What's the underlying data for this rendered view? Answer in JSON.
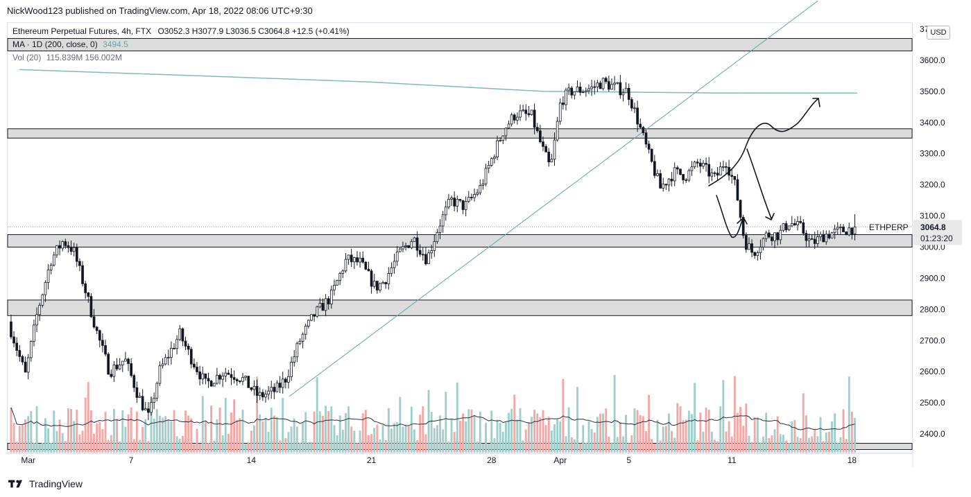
{
  "header": {
    "published": "NickWood123 published on TradingView.com, Apr 18, 2022 08:06 UTC+9:30"
  },
  "legend": {
    "symbol": "Ethereum Perpetual Futures, 4h, FTX",
    "ohlc": "O3052.3 H3077.9 L3036.5 C3064.8 +12.5 (+0.41%)",
    "ma_label": "MA · 1D (200, close, 0)",
    "ma_value": "3494.5",
    "vol_label": "Vol (20)",
    "vol_values": "115.839M  156.002M"
  },
  "currency_button": "USD",
  "last_price": {
    "ticker": "ETHPERP",
    "price": "3064.8",
    "countdown": "01:23:20"
  },
  "footer": {
    "brand": "TradingView"
  },
  "colors": {
    "up": "#26a69a",
    "down": "#ef5350",
    "vol_up": "#9fcfca",
    "vol_down": "#f2a8a6",
    "ma": "#7fb8bd",
    "trendline": "#5fa6ad",
    "zone_fill": "#dcdcdc",
    "zone_border": "#131722",
    "drawing": "#131722"
  },
  "chart_data": {
    "type": "candlestick",
    "title": "Ethereum Perpetual Futures, 4h, FTX",
    "y_axis": {
      "ticks": [
        2400,
        2500,
        2600,
        2700,
        2800,
        2900,
        3000,
        3100,
        3200,
        3300,
        3400,
        3500,
        3600,
        3700
      ],
      "tick_labels": [
        "2400.0",
        "2500.0",
        "2600.0",
        "2700.0",
        "2800.0",
        "2900.0",
        "3000.0",
        "3100.0",
        "3200.0",
        "3300.0",
        "3400.0",
        "3500.0",
        "3600.0",
        "3700.0"
      ],
      "range": [
        2340,
        3720
      ]
    },
    "x_axis": {
      "tick_labels": [
        "Mar",
        "7",
        "14",
        "21",
        "28",
        "Apr",
        "5",
        "11",
        "18"
      ],
      "tick_days": [
        0,
        6,
        13,
        20,
        27,
        31,
        35,
        41,
        48
      ]
    },
    "day_range": [
      -1.2,
      51.5
    ],
    "price_path": [
      {
        "day": -1.0,
        "price": 2760
      },
      {
        "day": 0.0,
        "price": 2590
      },
      {
        "day": 0.7,
        "price": 2790
      },
      {
        "day": 1.5,
        "price": 2960
      },
      {
        "day": 2.2,
        "price": 3020
      },
      {
        "day": 2.8,
        "price": 2990
      },
      {
        "day": 3.4,
        "price": 2880
      },
      {
        "day": 4.2,
        "price": 2720
      },
      {
        "day": 4.9,
        "price": 2600
      },
      {
        "day": 5.8,
        "price": 2640
      },
      {
        "day": 6.6,
        "price": 2520
      },
      {
        "day": 7.2,
        "price": 2450
      },
      {
        "day": 7.8,
        "price": 2600
      },
      {
        "day": 9.0,
        "price": 2720
      },
      {
        "day": 9.6,
        "price": 2650
      },
      {
        "day": 10.5,
        "price": 2560
      },
      {
        "day": 11.6,
        "price": 2600
      },
      {
        "day": 12.6,
        "price": 2580
      },
      {
        "day": 13.6,
        "price": 2520
      },
      {
        "day": 14.6,
        "price": 2540
      },
      {
        "day": 15.2,
        "price": 2580
      },
      {
        "day": 16.0,
        "price": 2700
      },
      {
        "day": 16.8,
        "price": 2780
      },
      {
        "day": 17.8,
        "price": 2840
      },
      {
        "day": 18.7,
        "price": 2960
      },
      {
        "day": 19.5,
        "price": 2950
      },
      {
        "day": 20.4,
        "price": 2870
      },
      {
        "day": 20.9,
        "price": 2890
      },
      {
        "day": 21.8,
        "price": 2980
      },
      {
        "day": 22.6,
        "price": 3030
      },
      {
        "day": 23.4,
        "price": 2960
      },
      {
        "day": 24.1,
        "price": 3070
      },
      {
        "day": 24.8,
        "price": 3150
      },
      {
        "day": 25.6,
        "price": 3130
      },
      {
        "day": 26.5,
        "price": 3190
      },
      {
        "day": 27.3,
        "price": 3300
      },
      {
        "day": 27.9,
        "price": 3380
      },
      {
        "day": 28.6,
        "price": 3430
      },
      {
        "day": 29.5,
        "price": 3420
      },
      {
        "day": 30.1,
        "price": 3320
      },
      {
        "day": 30.6,
        "price": 3250
      },
      {
        "day": 31.2,
        "price": 3470
      },
      {
        "day": 31.8,
        "price": 3500
      },
      {
        "day": 33.0,
        "price": 3510
      },
      {
        "day": 33.6,
        "price": 3530
      },
      {
        "day": 34.5,
        "price": 3510
      },
      {
        "day": 35.1,
        "price": 3500
      },
      {
        "day": 35.6,
        "price": 3420
      },
      {
        "day": 36.3,
        "price": 3300
      },
      {
        "day": 37.0,
        "price": 3190
      },
      {
        "day": 37.8,
        "price": 3240
      },
      {
        "day": 38.5,
        "price": 3230
      },
      {
        "day": 39.2,
        "price": 3270
      },
      {
        "day": 40.2,
        "price": 3220
      },
      {
        "day": 40.8,
        "price": 3280
      },
      {
        "day": 41.4,
        "price": 3190
      },
      {
        "day": 41.9,
        "price": 3020
      },
      {
        "day": 42.4,
        "price": 2980
      },
      {
        "day": 43.2,
        "price": 3040
      },
      {
        "day": 43.9,
        "price": 3040
      },
      {
        "day": 44.5,
        "price": 3080
      },
      {
        "day": 45.2,
        "price": 3060
      },
      {
        "day": 45.8,
        "price": 3010
      },
      {
        "day": 46.6,
        "price": 3040
      },
      {
        "day": 47.4,
        "price": 3050
      },
      {
        "day": 48.1,
        "price": 3060
      },
      {
        "day": 48.3,
        "price": 3064.8
      }
    ],
    "candles_per_day": 6,
    "ma_200_1d": {
      "name": "MA · 1D (200, close, 0)",
      "points": [
        {
          "day": -0.5,
          "price": 3570
        },
        {
          "day": 10.0,
          "price": 3550
        },
        {
          "day": 20.0,
          "price": 3530
        },
        {
          "day": 30.0,
          "price": 3500
        },
        {
          "day": 40.0,
          "price": 3495
        },
        {
          "day": 48.3,
          "price": 3494.5
        }
      ]
    },
    "trendline": {
      "from": {
        "day": 15.2,
        "price": 2520
      },
      "to": {
        "day": 46.0,
        "price": 3790
      }
    },
    "zones": [
      {
        "low": 3630,
        "high": 3670
      },
      {
        "low": 3350,
        "high": 3380
      },
      {
        "low": 3000,
        "high": 3040
      },
      {
        "low": 2780,
        "high": 2830
      },
      {
        "low": 2350,
        "high": 2370
      }
    ],
    "volume": {
      "label": "Vol (20)",
      "latest": "115.839M",
      "ma_value": "156.002M",
      "max_value_m": 600
    },
    "last_price_line": 3064.8
  }
}
